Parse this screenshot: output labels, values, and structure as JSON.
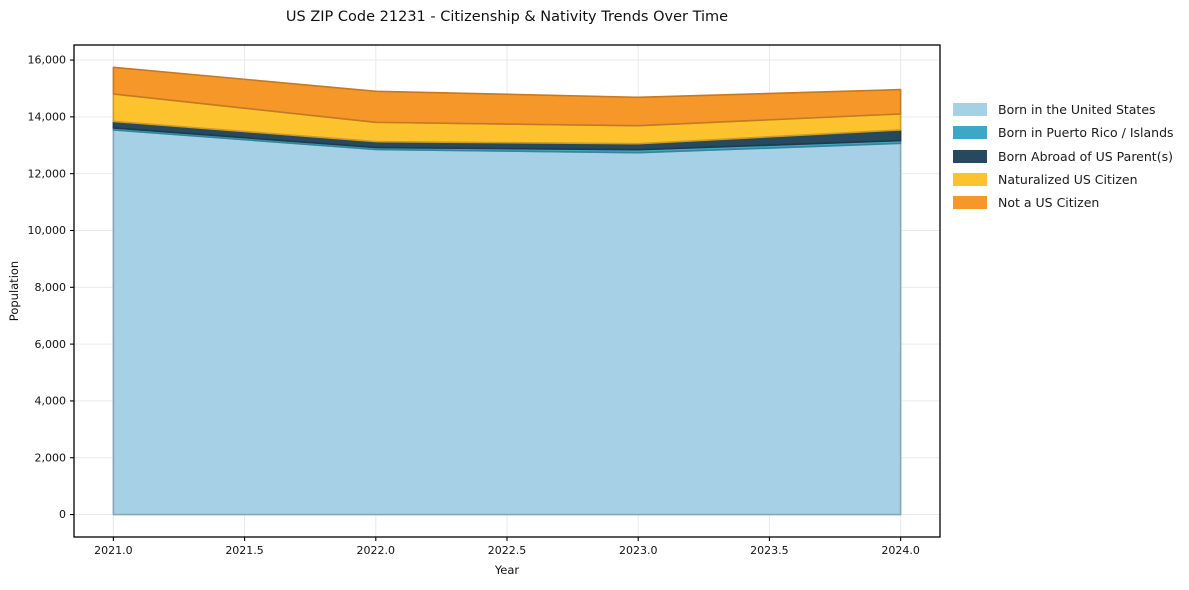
{
  "chart_data": {
    "type": "area",
    "stacked": true,
    "title": "US ZIP Code 21231 - Citizenship & Nativity Trends Over Time",
    "xlabel": "Year",
    "ylabel": "Population",
    "x": [
      2021,
      2022,
      2023,
      2024
    ],
    "series": [
      {
        "name": "Born in the United States",
        "color": "#a6d0e6",
        "values": [
          13540,
          12850,
          12740,
          13070
        ]
      },
      {
        "name": "Born in Puerto Rico / Islands",
        "color": "#3ea7c6",
        "values": [
          70,
          70,
          105,
          95
        ]
      },
      {
        "name": "Born Abroad of US Parent(s)",
        "color": "#26495e",
        "values": [
          230,
          210,
          210,
          375
        ]
      },
      {
        "name": "Naturalized US Citizen",
        "color": "#fcc32f",
        "values": [
          965,
          680,
          635,
          565
        ]
      },
      {
        "name": "Not a US Citizen",
        "color": "#f6972a",
        "values": [
          940,
          1090,
          1000,
          855
        ]
      }
    ],
    "totals": [
      15745,
      14900,
      14690,
      14960
    ],
    "xticks": [
      2021.0,
      2021.5,
      2022.0,
      2022.5,
      2023.0,
      2023.5,
      2024.0
    ],
    "xtick_labels": [
      "2021.0",
      "2021.5",
      "2022.0",
      "2022.5",
      "2023.0",
      "2023.5",
      "2024.0"
    ],
    "yticks": [
      0,
      2000,
      4000,
      6000,
      8000,
      10000,
      12000,
      14000,
      16000
    ],
    "ytick_labels": [
      "0",
      "2,000",
      "4,000",
      "6,000",
      "8,000",
      "10,000",
      "12,000",
      "14,000",
      "16,000"
    ],
    "xlim": [
      2020.85,
      2024.15
    ],
    "ylim": [
      -790,
      16530
    ],
    "grid": true,
    "grid_color": "#e9e9e9",
    "axis_color": "#000000",
    "legend_position": "right-outside",
    "legend_frame": false
  }
}
